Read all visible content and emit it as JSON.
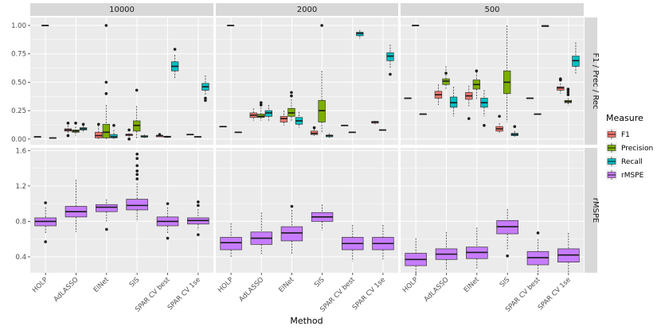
{
  "chart_data": {
    "type": "boxplot",
    "xlabel": "Method",
    "methods": [
      "HOLP",
      "AdLASSO",
      "ElNet",
      "SIS",
      "SPAR CV best",
      "SPAR CV 1se"
    ],
    "columns": [
      "10000",
      "2000",
      "500"
    ],
    "rows": [
      {
        "label": "F1 / Prec / Rec",
        "ylim": [
          -0.05,
          1.07
        ],
        "ticks": [
          "0.00",
          "0.25",
          "0.50",
          "0.75",
          "1.00"
        ]
      },
      {
        "label": "rMSPE",
        "ylim": [
          0.22,
          1.63
        ],
        "ticks": [
          "0.4",
          "0.8",
          "1.2",
          "1.6"
        ]
      }
    ],
    "legend": {
      "title": "Measure",
      "entries": [
        {
          "name": "F1",
          "color": "#F8766D"
        },
        {
          "name": "Precision",
          "color": "#7CAE00"
        },
        {
          "name": "Recall",
          "color": "#00BFC4"
        },
        {
          "name": "rMSPE",
          "color": "#C77CFF"
        }
      ]
    },
    "boxes": [
      {
        "col": 0,
        "row": 0,
        "method": 0,
        "measure": 0,
        "stats": [
          0.02,
          0.02,
          0.02,
          0.02,
          0.02
        ],
        "outliers": []
      },
      {
        "col": 0,
        "row": 0,
        "method": 0,
        "measure": 1,
        "stats": [
          1.0,
          1.0,
          1.0,
          1.0,
          1.0
        ],
        "outliers": []
      },
      {
        "col": 0,
        "row": 0,
        "method": 0,
        "measure": 2,
        "stats": [
          0.01,
          0.01,
          0.01,
          0.01,
          0.01
        ],
        "outliers": []
      },
      {
        "col": 0,
        "row": 0,
        "method": 1,
        "measure": 0,
        "stats": [
          0.04,
          0.07,
          0.08,
          0.09,
          0.12
        ],
        "outliers": [
          0.03,
          0.14
        ]
      },
      {
        "col": 0,
        "row": 0,
        "method": 1,
        "measure": 1,
        "stats": [
          0.03,
          0.06,
          0.07,
          0.08,
          0.11
        ],
        "outliers": [
          0.14
        ]
      },
      {
        "col": 0,
        "row": 0,
        "method": 1,
        "measure": 2,
        "stats": [
          0.06,
          0.08,
          0.09,
          0.1,
          0.12
        ],
        "outliers": [
          0.13
        ]
      },
      {
        "col": 0,
        "row": 0,
        "method": 2,
        "measure": 0,
        "stats": [
          0.0,
          0.01,
          0.03,
          0.06,
          0.12
        ],
        "outliers": [
          0.13
        ]
      },
      {
        "col": 0,
        "row": 0,
        "method": 2,
        "measure": 1,
        "stats": [
          0.0,
          0.01,
          0.06,
          0.13,
          0.3
        ],
        "outliers": [
          0.4,
          0.5,
          1.0
        ]
      },
      {
        "col": 0,
        "row": 0,
        "method": 2,
        "measure": 2,
        "stats": [
          0.0,
          0.01,
          0.02,
          0.04,
          0.08
        ],
        "outliers": [
          0.12
        ]
      },
      {
        "col": 0,
        "row": 0,
        "method": 3,
        "measure": 0,
        "stats": [
          0.02,
          0.03,
          0.04,
          0.04,
          0.05
        ],
        "outliers": [
          0.0,
          0.08
        ]
      },
      {
        "col": 0,
        "row": 0,
        "method": 3,
        "measure": 1,
        "stats": [
          0.0,
          0.07,
          0.12,
          0.16,
          0.29
        ],
        "outliers": [
          0.43
        ]
      },
      {
        "col": 0,
        "row": 0,
        "method": 3,
        "measure": 2,
        "stats": [
          0.01,
          0.02,
          0.02,
          0.03,
          0.04
        ],
        "outliers": []
      },
      {
        "col": 0,
        "row": 0,
        "method": 4,
        "measure": 0,
        "stats": [
          0.02,
          0.02,
          0.03,
          0.03,
          0.04
        ],
        "outliers": [
          0.04
        ]
      },
      {
        "col": 0,
        "row": 0,
        "method": 4,
        "measure": 1,
        "stats": [
          0.01,
          0.015,
          0.02,
          0.025,
          0.03
        ],
        "outliers": []
      },
      {
        "col": 0,
        "row": 0,
        "method": 4,
        "measure": 2,
        "stats": [
          0.53,
          0.6,
          0.64,
          0.68,
          0.74
        ],
        "outliers": [
          0.79
        ]
      },
      {
        "col": 0,
        "row": 0,
        "method": 5,
        "measure": 0,
        "stats": [
          0.04,
          0.04,
          0.04,
          0.04,
          0.04
        ],
        "outliers": []
      },
      {
        "col": 0,
        "row": 0,
        "method": 5,
        "measure": 1,
        "stats": [
          0.02,
          0.02,
          0.02,
          0.02,
          0.02
        ],
        "outliers": []
      },
      {
        "col": 0,
        "row": 0,
        "method": 5,
        "measure": 2,
        "stats": [
          0.39,
          0.43,
          0.46,
          0.49,
          0.56
        ],
        "outliers": [
          0.34,
          0.36
        ]
      },
      {
        "col": 1,
        "row": 0,
        "method": 0,
        "measure": 0,
        "stats": [
          0.11,
          0.11,
          0.11,
          0.11,
          0.11
        ],
        "outliers": []
      },
      {
        "col": 1,
        "row": 0,
        "method": 0,
        "measure": 1,
        "stats": [
          1.0,
          1.0,
          1.0,
          1.0,
          1.0
        ],
        "outliers": []
      },
      {
        "col": 1,
        "row": 0,
        "method": 0,
        "measure": 2,
        "stats": [
          0.06,
          0.06,
          0.06,
          0.06,
          0.06
        ],
        "outliers": []
      },
      {
        "col": 1,
        "row": 0,
        "method": 1,
        "measure": 0,
        "stats": [
          0.16,
          0.19,
          0.21,
          0.23,
          0.27
        ],
        "outliers": []
      },
      {
        "col": 1,
        "row": 0,
        "method": 1,
        "measure": 1,
        "stats": [
          0.16,
          0.19,
          0.2,
          0.22,
          0.28
        ],
        "outliers": [
          0.3,
          0.32
        ]
      },
      {
        "col": 1,
        "row": 0,
        "method": 1,
        "measure": 2,
        "stats": [
          0.16,
          0.2,
          0.23,
          0.25,
          0.3
        ],
        "outliers": []
      },
      {
        "col": 1,
        "row": 0,
        "method": 2,
        "measure": 0,
        "stats": [
          0.12,
          0.15,
          0.18,
          0.2,
          0.25
        ],
        "outliers": []
      },
      {
        "col": 1,
        "row": 0,
        "method": 2,
        "measure": 1,
        "stats": [
          0.15,
          0.2,
          0.23,
          0.27,
          0.35
        ],
        "outliers": [
          0.38,
          0.41
        ]
      },
      {
        "col": 1,
        "row": 0,
        "method": 2,
        "measure": 2,
        "stats": [
          0.1,
          0.13,
          0.16,
          0.19,
          0.24
        ],
        "outliers": []
      },
      {
        "col": 1,
        "row": 0,
        "method": 3,
        "measure": 0,
        "stats": [
          0.03,
          0.04,
          0.05,
          0.07,
          0.09
        ],
        "outliers": [
          0.1
        ]
      },
      {
        "col": 1,
        "row": 0,
        "method": 3,
        "measure": 1,
        "stats": [
          0.05,
          0.15,
          0.25,
          0.34,
          0.6
        ],
        "outliers": [
          1.0
        ]
      },
      {
        "col": 1,
        "row": 0,
        "method": 3,
        "measure": 2,
        "stats": [
          0.01,
          0.02,
          0.03,
          0.035,
          0.05
        ],
        "outliers": []
      },
      {
        "col": 1,
        "row": 0,
        "method": 4,
        "measure": 0,
        "stats": [
          0.12,
          0.12,
          0.12,
          0.12,
          0.12
        ],
        "outliers": []
      },
      {
        "col": 1,
        "row": 0,
        "method": 4,
        "measure": 1,
        "stats": [
          0.06,
          0.06,
          0.06,
          0.06,
          0.06
        ],
        "outliers": []
      },
      {
        "col": 1,
        "row": 0,
        "method": 4,
        "measure": 2,
        "stats": [
          0.88,
          0.91,
          0.93,
          0.94,
          0.96
        ],
        "outliers": []
      },
      {
        "col": 1,
        "row": 0,
        "method": 5,
        "measure": 0,
        "stats": [
          0.13,
          0.14,
          0.15,
          0.155,
          0.16
        ],
        "outliers": []
      },
      {
        "col": 1,
        "row": 0,
        "method": 5,
        "measure": 1,
        "stats": [
          0.08,
          0.08,
          0.08,
          0.08,
          0.08
        ],
        "outliers": []
      },
      {
        "col": 1,
        "row": 0,
        "method": 5,
        "measure": 2,
        "stats": [
          0.62,
          0.69,
          0.73,
          0.76,
          0.83
        ],
        "outliers": [
          0.57
        ]
      },
      {
        "col": 2,
        "row": 0,
        "method": 0,
        "measure": 0,
        "stats": [
          0.36,
          0.36,
          0.36,
          0.36,
          0.36
        ],
        "outliers": []
      },
      {
        "col": 2,
        "row": 0,
        "method": 0,
        "measure": 1,
        "stats": [
          1.0,
          1.0,
          1.0,
          1.0,
          1.0
        ],
        "outliers": []
      },
      {
        "col": 2,
        "row": 0,
        "method": 0,
        "measure": 2,
        "stats": [
          0.22,
          0.22,
          0.22,
          0.22,
          0.22
        ],
        "outliers": []
      },
      {
        "col": 2,
        "row": 0,
        "method": 1,
        "measure": 0,
        "stats": [
          0.3,
          0.36,
          0.39,
          0.42,
          0.48
        ],
        "outliers": []
      },
      {
        "col": 2,
        "row": 0,
        "method": 1,
        "measure": 1,
        "stats": [
          0.43,
          0.48,
          0.51,
          0.53,
          0.64
        ],
        "outliers": [
          0.58
        ]
      },
      {
        "col": 2,
        "row": 0,
        "method": 1,
        "measure": 2,
        "stats": [
          0.2,
          0.28,
          0.32,
          0.37,
          0.46
        ],
        "outliers": []
      },
      {
        "col": 2,
        "row": 0,
        "method": 2,
        "measure": 0,
        "stats": [
          0.29,
          0.35,
          0.38,
          0.41,
          0.47
        ],
        "outliers": [
          0.18
        ]
      },
      {
        "col": 2,
        "row": 0,
        "method": 2,
        "measure": 1,
        "stats": [
          0.35,
          0.44,
          0.48,
          0.52,
          0.59
        ],
        "outliers": [
          0.6
        ]
      },
      {
        "col": 2,
        "row": 0,
        "method": 2,
        "measure": 2,
        "stats": [
          0.2,
          0.28,
          0.32,
          0.36,
          0.43
        ],
        "outliers": [
          0.12
        ]
      },
      {
        "col": 2,
        "row": 0,
        "method": 3,
        "measure": 0,
        "stats": [
          0.05,
          0.07,
          0.09,
          0.11,
          0.14
        ],
        "outliers": [
          0.2
        ]
      },
      {
        "col": 2,
        "row": 0,
        "method": 3,
        "measure": 1,
        "stats": [
          0.15,
          0.4,
          0.5,
          0.6,
          1.0
        ],
        "outliers": []
      },
      {
        "col": 2,
        "row": 0,
        "method": 3,
        "measure": 2,
        "stats": [
          0.02,
          0.03,
          0.04,
          0.05,
          0.07
        ],
        "outliers": [
          0.11
        ]
      },
      {
        "col": 2,
        "row": 0,
        "method": 4,
        "measure": 0,
        "stats": [
          0.36,
          0.36,
          0.36,
          0.36,
          0.36
        ],
        "outliers": []
      },
      {
        "col": 2,
        "row": 0,
        "method": 4,
        "measure": 1,
        "stats": [
          0.22,
          0.22,
          0.22,
          0.22,
          0.22
        ],
        "outliers": []
      },
      {
        "col": 2,
        "row": 0,
        "method": 4,
        "measure": 2,
        "stats": [
          0.99,
          0.99,
          0.995,
          1.0,
          1.0
        ],
        "outliers": []
      },
      {
        "col": 2,
        "row": 0,
        "method": 5,
        "measure": 0,
        "stats": [
          0.4,
          0.43,
          0.45,
          0.46,
          0.49
        ],
        "outliers": [
          0.52,
          0.53
        ]
      },
      {
        "col": 2,
        "row": 0,
        "method": 5,
        "measure": 1,
        "stats": [
          0.29,
          0.32,
          0.33,
          0.34,
          0.36
        ],
        "outliers": [
          0.39,
          0.41,
          0.43,
          0.44
        ]
      },
      {
        "col": 2,
        "row": 0,
        "method": 5,
        "measure": 2,
        "stats": [
          0.57,
          0.64,
          0.69,
          0.73,
          0.85
        ],
        "outliers": []
      },
      {
        "col": 0,
        "row": 1,
        "method": 0,
        "measure": 3,
        "stats": [
          0.66,
          0.75,
          0.8,
          0.84,
          0.96
        ],
        "outliers": [
          0.57,
          1.01
        ]
      },
      {
        "col": 0,
        "row": 1,
        "method": 1,
        "measure": 3,
        "stats": [
          0.68,
          0.85,
          0.91,
          0.97,
          1.27
        ],
        "outliers": []
      },
      {
        "col": 0,
        "row": 1,
        "method": 2,
        "measure": 3,
        "stats": [
          0.8,
          0.91,
          0.96,
          0.99,
          1.05
        ],
        "outliers": [
          0.71
        ]
      },
      {
        "col": 0,
        "row": 1,
        "method": 3,
        "measure": 3,
        "stats": [
          0.8,
          0.93,
          0.98,
          1.05,
          1.23
        ],
        "outliers": [
          1.28,
          1.33,
          1.37,
          1.43,
          1.51,
          1.56
        ]
      },
      {
        "col": 0,
        "row": 1,
        "method": 4,
        "measure": 3,
        "stats": [
          0.66,
          0.75,
          0.8,
          0.85,
          0.96
        ],
        "outliers": [
          0.61,
          1.0
        ]
      },
      {
        "col": 0,
        "row": 1,
        "method": 5,
        "measure": 3,
        "stats": [
          0.7,
          0.77,
          0.81,
          0.84,
          0.94
        ],
        "outliers": [
          0.65,
          0.98,
          1.02
        ]
      },
      {
        "col": 1,
        "row": 1,
        "method": 0,
        "measure": 3,
        "stats": [
          0.4,
          0.48,
          0.56,
          0.62,
          0.78
        ],
        "outliers": []
      },
      {
        "col": 1,
        "row": 1,
        "method": 1,
        "measure": 3,
        "stats": [
          0.43,
          0.54,
          0.61,
          0.68,
          0.9
        ],
        "outliers": []
      },
      {
        "col": 1,
        "row": 1,
        "method": 2,
        "measure": 3,
        "stats": [
          0.43,
          0.58,
          0.67,
          0.74,
          0.93
        ],
        "outliers": [
          0.97
        ]
      },
      {
        "col": 1,
        "row": 1,
        "method": 3,
        "measure": 3,
        "stats": [
          0.7,
          0.8,
          0.85,
          0.9,
          0.99
        ],
        "outliers": []
      },
      {
        "col": 1,
        "row": 1,
        "method": 4,
        "measure": 3,
        "stats": [
          0.35,
          0.48,
          0.55,
          0.62,
          0.76
        ],
        "outliers": []
      },
      {
        "col": 1,
        "row": 1,
        "method": 5,
        "measure": 3,
        "stats": [
          0.37,
          0.48,
          0.55,
          0.62,
          0.76
        ],
        "outliers": []
      },
      {
        "col": 2,
        "row": 1,
        "method": 0,
        "measure": 3,
        "stats": [
          0.18,
          0.3,
          0.37,
          0.44,
          0.61
        ],
        "outliers": []
      },
      {
        "col": 2,
        "row": 1,
        "method": 1,
        "measure": 3,
        "stats": [
          0.25,
          0.37,
          0.43,
          0.49,
          0.68
        ],
        "outliers": []
      },
      {
        "col": 2,
        "row": 1,
        "method": 2,
        "measure": 3,
        "stats": [
          0.26,
          0.38,
          0.45,
          0.51,
          0.73
        ],
        "outliers": []
      },
      {
        "col": 2,
        "row": 1,
        "method": 3,
        "measure": 3,
        "stats": [
          0.47,
          0.66,
          0.74,
          0.81,
          0.94
        ],
        "outliers": [
          0.41
        ]
      },
      {
        "col": 2,
        "row": 1,
        "method": 4,
        "measure": 3,
        "stats": [
          0.22,
          0.31,
          0.39,
          0.46,
          0.6
        ],
        "outliers": [
          0.67
        ]
      },
      {
        "col": 2,
        "row": 1,
        "method": 5,
        "measure": 3,
        "stats": [
          0.22,
          0.34,
          0.42,
          0.49,
          0.67
        ],
        "outliers": []
      }
    ]
  }
}
